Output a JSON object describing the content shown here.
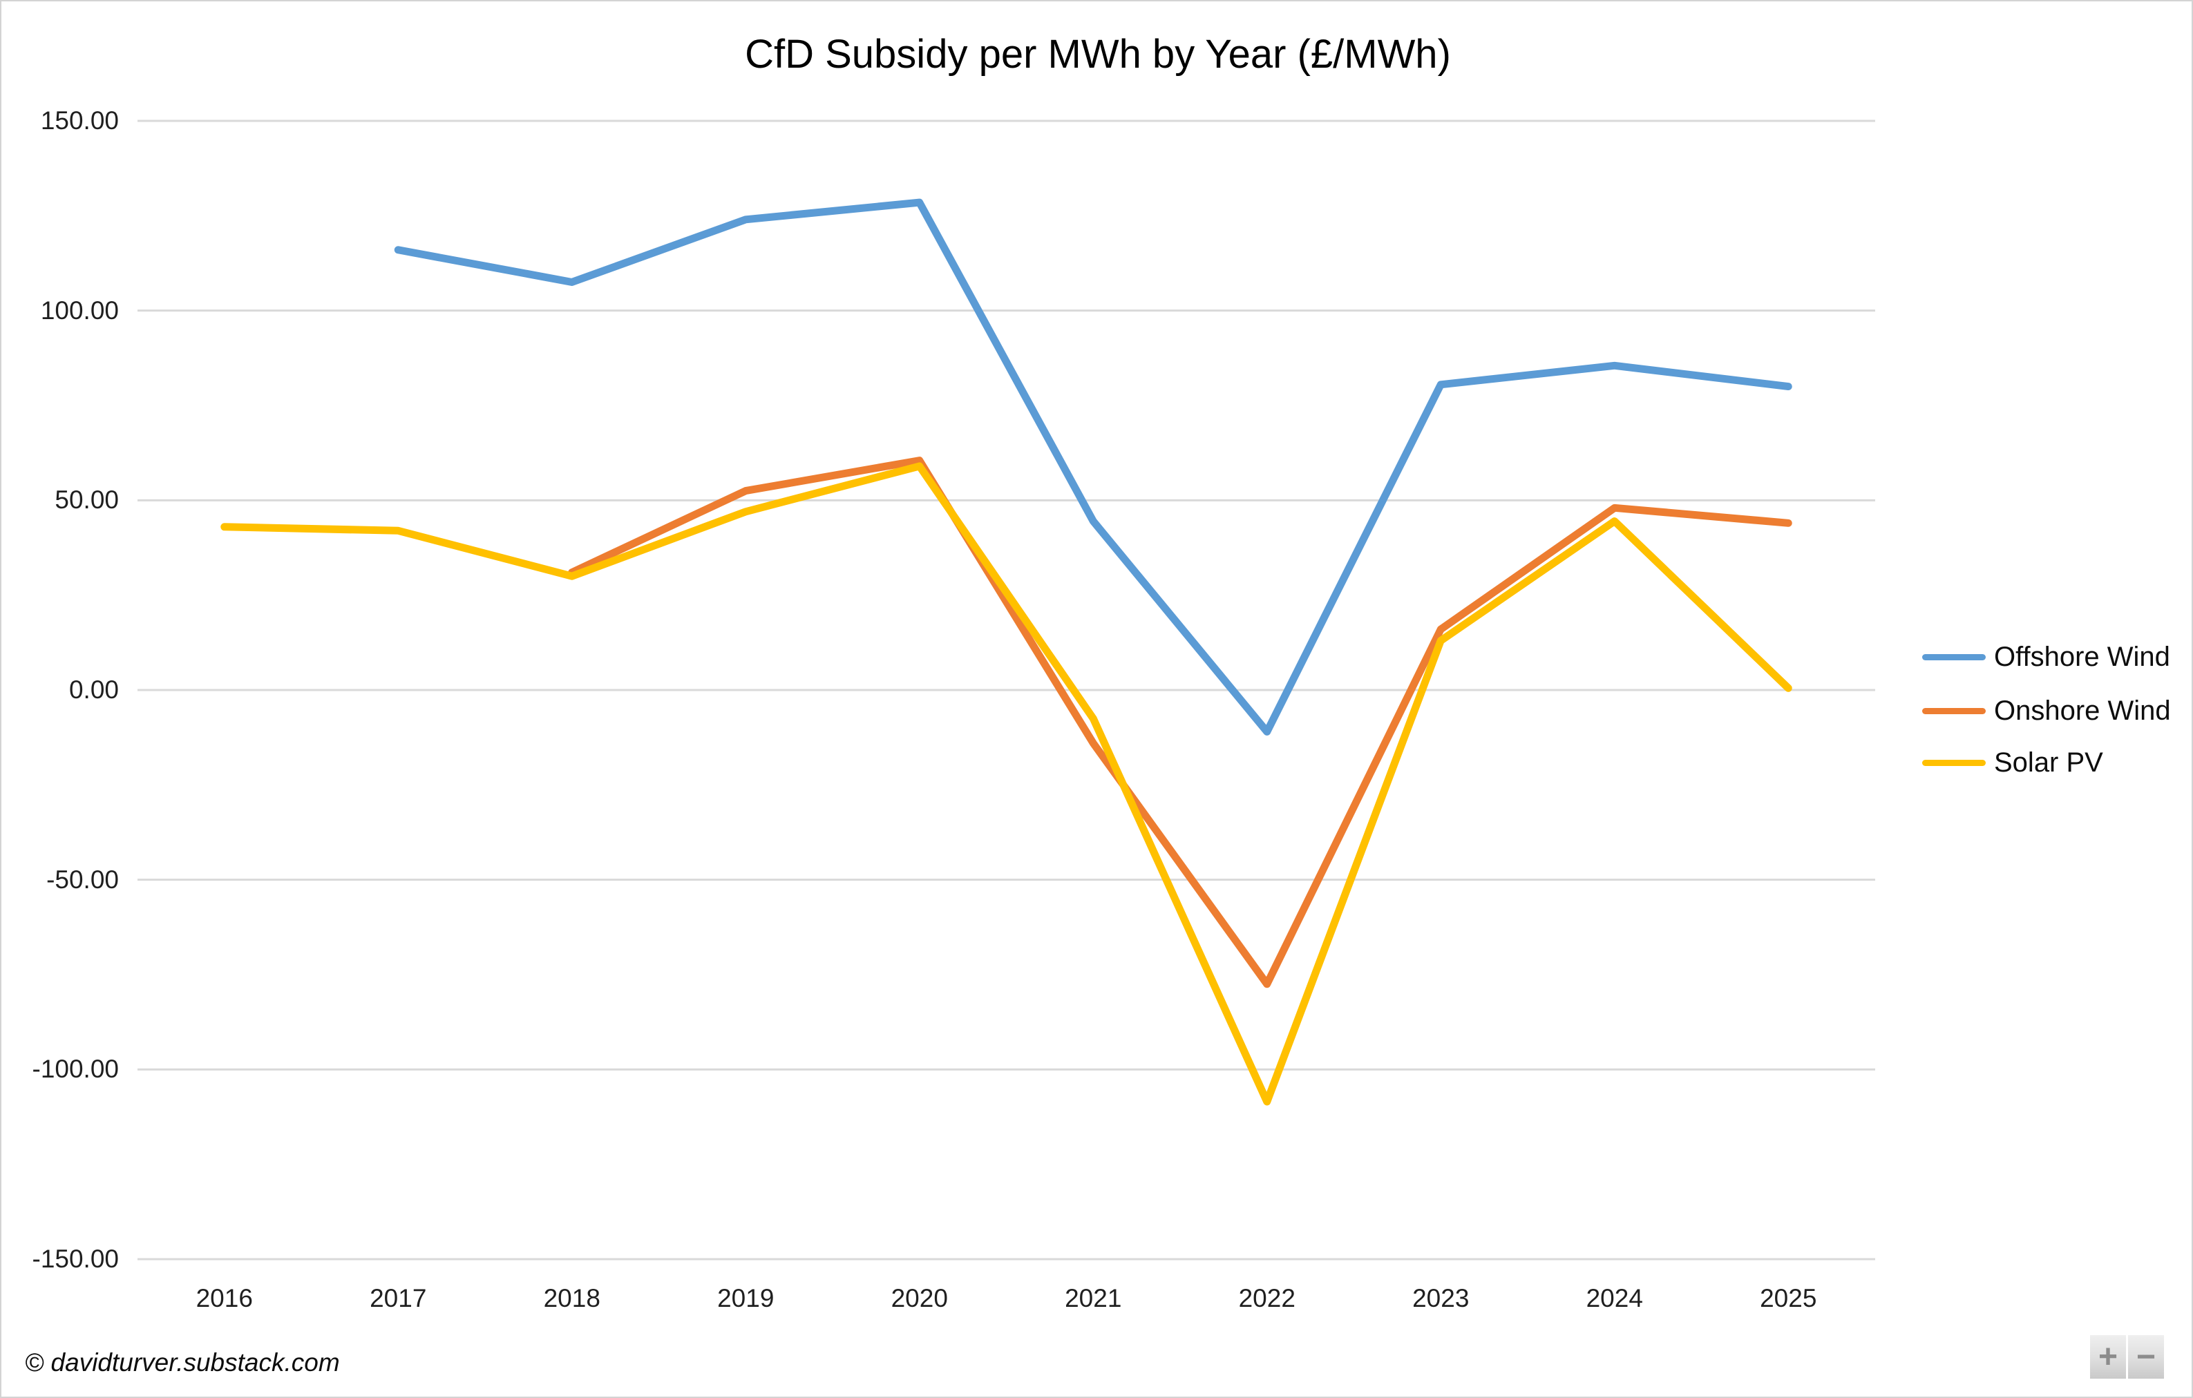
{
  "footer": {
    "copyright": "© davidturver.substack.com"
  },
  "controls": {
    "zoom_in_label": "+",
    "zoom_out_label": "−"
  },
  "colors": {
    "offshore_wind": "#5B9BD5",
    "onshore_wind": "#ED7D31",
    "solar_pv": "#FFC000",
    "gridline": "#D9D9D9",
    "text": "#1f1f1f"
  },
  "chart_data": {
    "type": "line",
    "title": "CfD Subsidy per MWh by Year (£/MWh)",
    "xlabel": "",
    "ylabel": "",
    "categories": [
      "2016",
      "2017",
      "2018",
      "2019",
      "2020",
      "2021",
      "2022",
      "2023",
      "2024",
      "2025"
    ],
    "series": [
      {
        "name": "Offshore Wind",
        "color": "#5B9BD5",
        "values": [
          null,
          116,
          107.5,
          124,
          128.5,
          44.5,
          -11,
          80.5,
          85.5,
          80
        ]
      },
      {
        "name": "Onshore Wind",
        "color": "#ED7D31",
        "values": [
          null,
          null,
          31,
          52.5,
          60.5,
          -14,
          -77.5,
          16,
          48,
          44
        ]
      },
      {
        "name": "Solar PV",
        "color": "#FFC000",
        "values": [
          43,
          42,
          30,
          47,
          59,
          -7.5,
          -108.5,
          13,
          44.5,
          0.5
        ]
      }
    ],
    "y_tick_labels": [
      "150.00",
      "100.00",
      "50.00",
      "0.00",
      "-50.00",
      "-100.00",
      "-150.00"
    ],
    "ylim": [
      -150,
      150
    ],
    "grid": true,
    "legend_position": "right"
  }
}
